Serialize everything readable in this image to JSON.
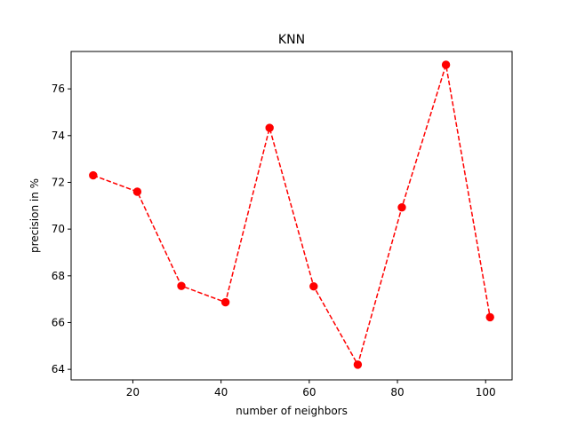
{
  "chart_data": {
    "type": "line",
    "title": "KNN",
    "xlabel": "number of neighbors",
    "ylabel": "precision in %",
    "xlim": [
      6,
      106
    ],
    "ylim": [
      63.55,
      77.6
    ],
    "xticks": [
      20,
      40,
      60,
      80,
      100
    ],
    "yticks": [
      64,
      66,
      68,
      70,
      72,
      74,
      76
    ],
    "grid": false,
    "series": [
      {
        "x": [
          11,
          21,
          31,
          41,
          51,
          61,
          71,
          81,
          91,
          101
        ],
        "y": [
          72.3,
          71.6,
          67.57,
          66.87,
          74.33,
          67.55,
          64.2,
          70.93,
          77.03,
          66.23
        ],
        "color": "#ff0000",
        "linestyle": "dashed",
        "marker": "circle"
      }
    ]
  }
}
